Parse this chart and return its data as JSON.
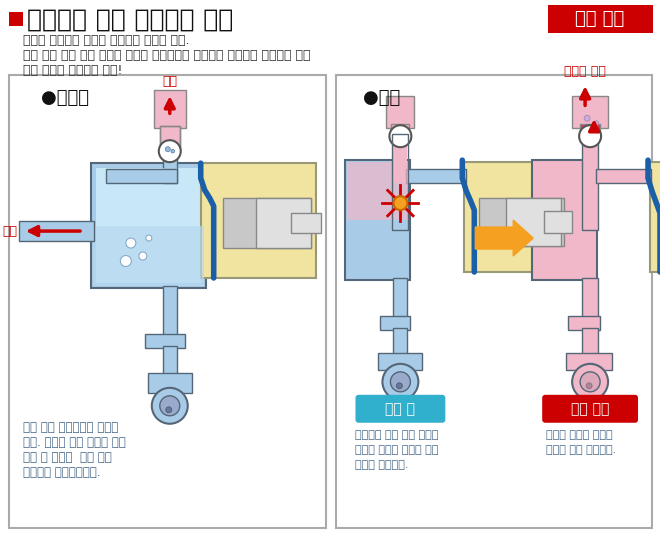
{
  "title": "인라인식 자동 에어빼기 기구",
  "patent_text": "특허 취득",
  "subtitle1": "새로운 개념으로 설계된 에어빼기 기구를 탑재.",
  "subtitle2": "만일 펌프 헤드 안에 혼입된 에어도 인라인으로 확실하게 제거하여 가스록에 의한",
  "subtitle3": "토출 불량을 자동으로 해소!",
  "left_title": "●기존형",
  "right_title": "●신형",
  "left_label_air": "에어",
  "left_label_liquid": "약액",
  "right_label_liquid_air": "약액과 에어",
  "standby_label": "대기 시",
  "discharge_label": "토출 공정",
  "left_desc1": "전용 에어 배출구에서 에어들",
  "left_desc2": "배출. 상황에 따라 약액이 에어",
  "left_desc3": "배출 구 측으로  누출 되어",
  "left_desc4": "토출량이 불안정해진다.",
  "mid_desc1": "토출측과 펌프 헤드 내부가",
  "mid_desc2": "서서히 동일한 압력이 되어",
  "mid_desc3": "에어가 압축된다.",
  "right_desc1": "체적이 작아진 에어는",
  "right_desc2": "액체와 함께 토출된다.",
  "bg_color": "#ffffff",
  "title_red": "#cc0000",
  "patent_bg": "#cc0000",
  "blue_fill": "#a8cce8",
  "pink_fill": "#f0b8c8",
  "dark_blue": "#1a5fa8",
  "yellow_fill": "#f0e4a0",
  "gray_fill": "#c8c8c8",
  "light_gray": "#e0e0e0",
  "cyan_label_bg": "#30b0cc",
  "desc_text_color": "#446688",
  "orange_arrow": "#f5a020"
}
